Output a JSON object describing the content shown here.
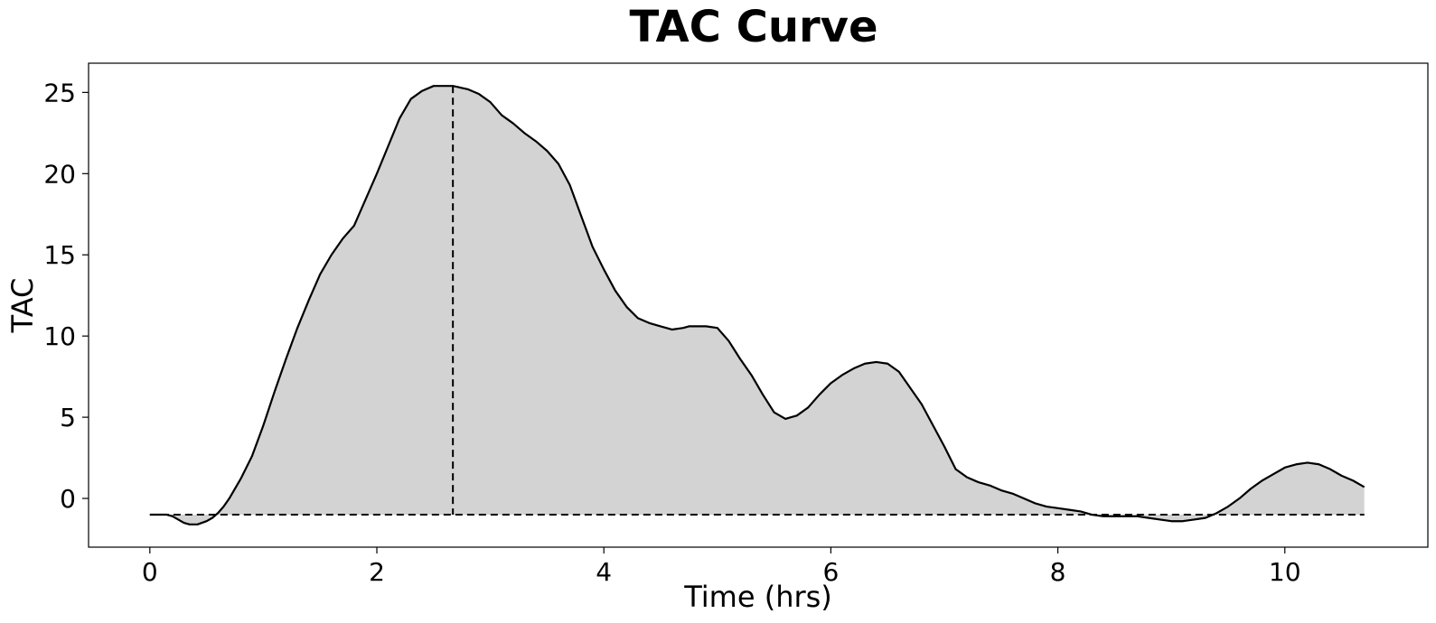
{
  "chart_data": {
    "type": "area",
    "title": "TAC Curve",
    "xlabel": "Time (hrs)",
    "ylabel": "TAC",
    "xlim": [
      -0.54,
      11.26
    ],
    "ylim": [
      -3.0,
      26.8
    ],
    "xticks": [
      0,
      2,
      4,
      6,
      8,
      10
    ],
    "yticks": [
      0,
      5,
      10,
      15,
      20,
      25
    ],
    "grid": false,
    "baseline": -1.0,
    "peak": {
      "x": 2.67,
      "y": 25.4
    },
    "colors": {
      "fill": "#d3d3d3",
      "line": "#000000"
    },
    "series": [
      {
        "x": [
          0,
          0.05,
          0.15,
          0.2,
          0.25,
          0.3,
          0.35,
          0.42,
          0.5,
          0.55,
          0.6,
          0.65,
          0.7,
          0.8,
          0.9,
          1.0,
          1.1,
          1.2,
          1.3,
          1.4,
          1.5,
          1.6,
          1.7,
          1.8,
          1.9,
          2.0,
          2.1,
          2.2,
          2.3,
          2.4,
          2.5,
          2.6,
          2.67,
          2.8,
          2.9,
          3.0,
          3.1,
          3.2,
          3.3,
          3.4,
          3.5,
          3.6,
          3.7,
          3.8,
          3.9,
          4.0,
          4.1,
          4.2,
          4.3,
          4.4,
          4.5,
          4.6,
          4.7,
          4.75,
          4.8,
          4.9,
          5.0,
          5.1,
          5.2,
          5.3,
          5.4,
          5.5,
          5.6,
          5.65,
          5.7,
          5.8,
          5.9,
          6.0,
          6.1,
          6.2,
          6.3,
          6.4,
          6.5,
          6.6,
          6.7,
          6.8,
          6.9,
          7.0,
          7.1,
          7.2,
          7.3,
          7.4,
          7.5,
          7.6,
          7.7,
          7.8,
          7.9,
          8.0,
          8.1,
          8.2,
          8.3,
          8.4,
          8.5,
          8.6,
          8.7,
          8.8,
          8.9,
          9.0,
          9.1,
          9.2,
          9.3,
          9.4,
          9.5,
          9.6,
          9.7,
          9.8,
          9.9,
          10.0,
          10.1,
          10.2,
          10.3,
          10.4,
          10.5,
          10.6,
          10.7
        ],
        "y": [
          -1.0,
          -1.0,
          -1.0,
          -1.1,
          -1.3,
          -1.5,
          -1.6,
          -1.6,
          -1.4,
          -1.2,
          -0.9,
          -0.5,
          0.0,
          1.2,
          2.6,
          4.5,
          6.6,
          8.6,
          10.5,
          12.2,
          13.8,
          15.0,
          16.0,
          16.8,
          18.4,
          20.0,
          21.7,
          23.4,
          24.6,
          25.1,
          25.4,
          25.4,
          25.4,
          25.2,
          24.9,
          24.4,
          23.6,
          23.1,
          22.5,
          22.0,
          21.4,
          20.6,
          19.3,
          17.4,
          15.5,
          14.1,
          12.8,
          11.8,
          11.1,
          10.8,
          10.6,
          10.4,
          10.5,
          10.6,
          10.6,
          10.6,
          10.5,
          9.7,
          8.6,
          7.6,
          6.4,
          5.3,
          4.9,
          5.0,
          5.1,
          5.6,
          6.4,
          7.1,
          7.6,
          8.0,
          8.3,
          8.4,
          8.3,
          7.8,
          6.8,
          5.8,
          4.5,
          3.2,
          1.8,
          1.3,
          1.0,
          0.8,
          0.5,
          0.3,
          0.0,
          -0.3,
          -0.5,
          -0.6,
          -0.7,
          -0.8,
          -1.0,
          -1.1,
          -1.1,
          -1.1,
          -1.1,
          -1.2,
          -1.3,
          -1.4,
          -1.4,
          -1.3,
          -1.2,
          -0.9,
          -0.5,
          0.0,
          0.6,
          1.1,
          1.5,
          1.9,
          2.1,
          2.2,
          2.1,
          1.8,
          1.4,
          1.1,
          0.7
        ]
      }
    ]
  }
}
